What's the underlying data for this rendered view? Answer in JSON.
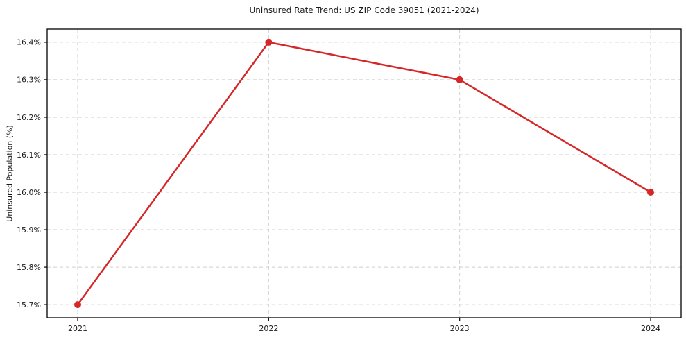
{
  "chart_data": {
    "type": "line",
    "title": "Uninsured Rate Trend: US ZIP Code 39051 (2021-2024)",
    "xlabel": "",
    "ylabel": "Uninsured Population (%)",
    "x": [
      2021,
      2022,
      2023,
      2024
    ],
    "xticklabels": [
      "2021",
      "2022",
      "2023",
      "2024"
    ],
    "series": [
      {
        "name": "uninsured-rate",
        "values": [
          15.7,
          16.4,
          16.3,
          16.0
        ]
      }
    ],
    "yticks": [
      15.7,
      15.8,
      15.9,
      16.0,
      16.1,
      16.2,
      16.3,
      16.4
    ],
    "yticklabels": [
      "15.7%",
      "15.8%",
      "15.9%",
      "16.0%",
      "16.1%",
      "16.2%",
      "16.3%",
      "16.4%"
    ],
    "ylim": [
      15.665,
      16.435
    ],
    "grid": true,
    "grid_style": "dashed",
    "legend_position": "none",
    "colors": {
      "line": "#d62728",
      "marker": "#d62728",
      "grid": "#cfcfcf",
      "spine": "#000000",
      "tick_text": "#1a1a1a",
      "background": "#ffffff"
    }
  }
}
